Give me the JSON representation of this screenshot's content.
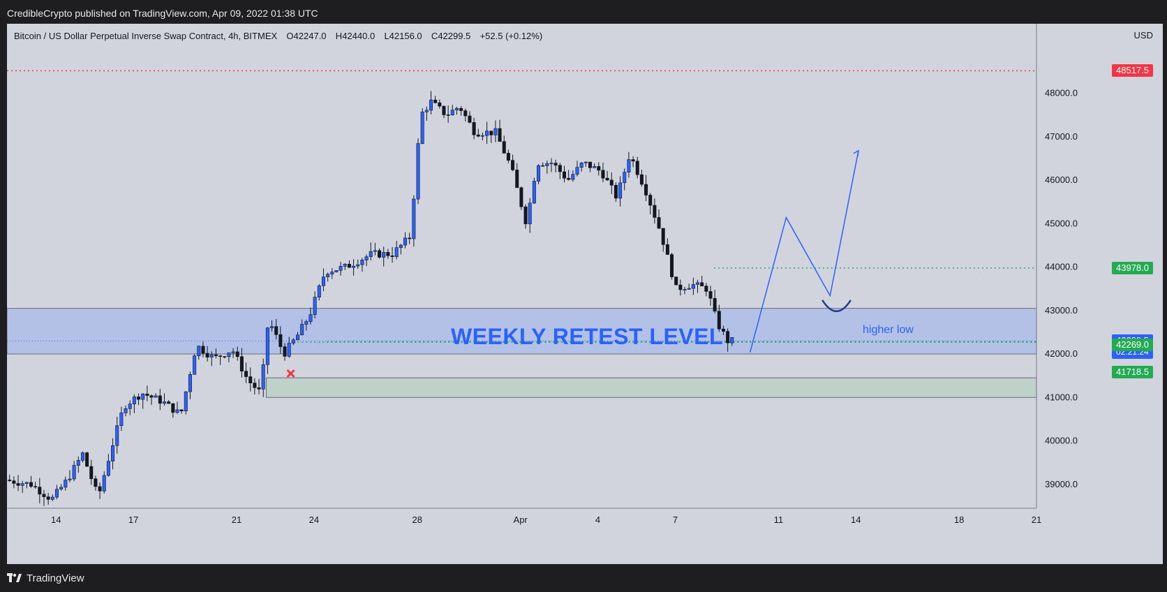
{
  "header": {
    "published": "CredibleCrypto published on TradingView.com, Apr 09, 2022 01:38 UTC"
  },
  "footer": {
    "brand": "TradingView"
  },
  "instrument": {
    "name": "Bitcoin / US Dollar Perpetual Inverse Swap Contract, 4h, BITMEX",
    "open_label": "O",
    "open": "42247.0",
    "high_label": "H",
    "high": "42440.0",
    "low_label": "L",
    "low": "42156.0",
    "close_label": "C",
    "close": "42299.5",
    "change": "+52.5 (+0.12%)",
    "currency": "USD"
  },
  "annotations": {
    "retest_label": "WEEKLY RETEST LEVEL",
    "higher_low_label": "higher low"
  },
  "price_tags": [
    {
      "value": "48517.5",
      "color": "#f23645"
    },
    {
      "value": "43978.0",
      "color": "#22ab52"
    },
    {
      "value": "42299.5",
      "sub": "02:21:24",
      "color": "#2962ff"
    },
    {
      "value": "42269.0",
      "color": "#22ab52"
    },
    {
      "value": "41718.5",
      "color": "#22ab52"
    }
  ],
  "colors": {
    "background": "#d1d4dc",
    "up_candle": "#2962ff",
    "down_candle": "#131722",
    "retest_zone": "#b3c1e6",
    "support_zone": "#bfd2c9",
    "resistance_line": "#f23645",
    "support_dots": "#22ab52",
    "projection": "#2962ff"
  },
  "chart_data": {
    "type": "candlestick",
    "timeframe": "4h",
    "ylim": [
      38450,
      49600
    ],
    "y_ticks": [
      39000,
      40000,
      41000,
      42000,
      43000,
      44000,
      45000,
      46000,
      47000,
      48000
    ],
    "y_tick_labels": [
      "39000.0",
      "40000.0",
      "41000.0",
      "42000.0",
      "43000.0",
      "44000.0",
      "45000.0",
      "46000.0",
      "47000.0",
      "48000.0"
    ],
    "x_tick_labels": [
      "14",
      "17",
      "21",
      "24",
      "28",
      "Apr",
      "4",
      "7",
      "11",
      "14",
      "18",
      "21"
    ],
    "x_tick_days": [
      14,
      17,
      21,
      24,
      28,
      32,
      35,
      38,
      42,
      45,
      49,
      52
    ],
    "xlim_days": [
      12.1,
      52.0
    ],
    "ohlc_anchors_day_price": [
      [
        12.2,
        39100
      ],
      [
        13.2,
        39000
      ],
      [
        14.0,
        38650
      ],
      [
        14.6,
        39100
      ],
      [
        15.2,
        39700
      ],
      [
        15.8,
        38700
      ],
      [
        16.3,
        39800
      ],
      [
        16.8,
        40800
      ],
      [
        17.5,
        41100
      ],
      [
        18.3,
        40900
      ],
      [
        19.0,
        40600
      ],
      [
        19.6,
        42200
      ],
      [
        20.3,
        41900
      ],
      [
        21.0,
        42100
      ],
      [
        21.6,
        41400
      ],
      [
        22.1,
        41100
      ],
      [
        22.4,
        42800
      ],
      [
        23.0,
        42000
      ],
      [
        23.5,
        42400
      ],
      [
        24.0,
        42900
      ],
      [
        24.6,
        43900
      ],
      [
        25.4,
        44000
      ],
      [
        26.4,
        44300
      ],
      [
        27.2,
        44300
      ],
      [
        27.9,
        44700
      ],
      [
        28.3,
        47500
      ],
      [
        28.7,
        47800
      ],
      [
        29.3,
        47500
      ],
      [
        29.8,
        47700
      ],
      [
        30.4,
        47100
      ],
      [
        31.2,
        47100
      ],
      [
        31.8,
        46300
      ],
      [
        32.4,
        45000
      ],
      [
        32.8,
        46400
      ],
      [
        33.4,
        46400
      ],
      [
        34.0,
        46000
      ],
      [
        34.6,
        46400
      ],
      [
        35.3,
        46200
      ],
      [
        35.9,
        45600
      ],
      [
        36.4,
        46600
      ],
      [
        37.0,
        45800
      ],
      [
        37.6,
        44800
      ],
      [
        38.2,
        43500
      ],
      [
        38.8,
        43600
      ],
      [
        39.4,
        43500
      ],
      [
        39.8,
        42700
      ],
      [
        40.2,
        42300
      ]
    ],
    "levels": {
      "resistance": 48517.5,
      "support_dotted_upper": 43978.0,
      "current_price": 42299.5,
      "support_dotted_lower": 42269.0,
      "weekly_retest_zone": [
        42000,
        43050
      ],
      "green_zone": [
        41000,
        41450
      ]
    },
    "projection_path_day_price": [
      [
        40.9,
        42040
      ],
      [
        42.3,
        45140
      ],
      [
        44.0,
        43340
      ],
      [
        45.1,
        46680
      ]
    ],
    "higher_low_arc_day_price": [
      [
        43.7,
        43240
      ],
      [
        44.8,
        43240
      ]
    ],
    "invalidation_marker_day_price": [
      23.1,
      41550
    ]
  }
}
